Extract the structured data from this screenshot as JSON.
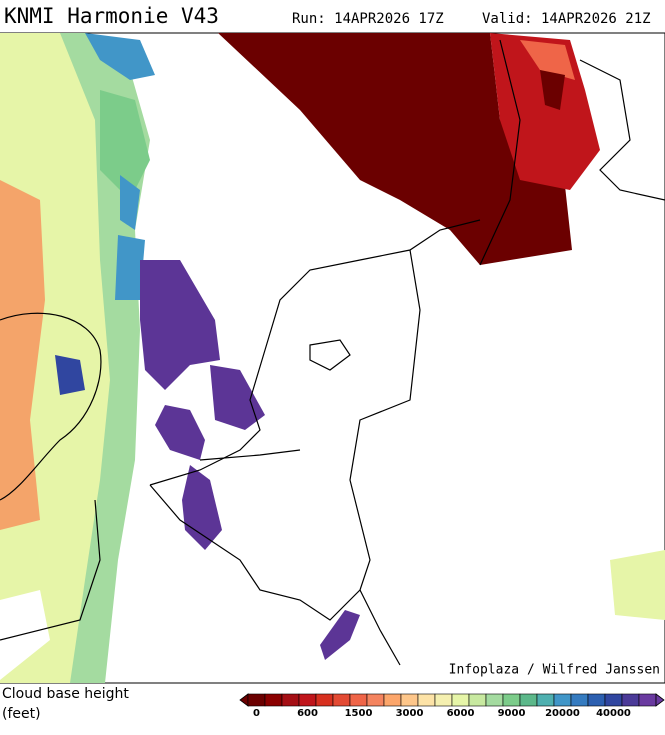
{
  "header": {
    "title": "KNMI Harmonie V43",
    "run": "Run: 14APR2026 17Z",
    "valid": "Valid: 14APR2026 21Z"
  },
  "credit": "Infoplaza / Wilfred Janssen",
  "legend": {
    "title": "Cloud base height",
    "unit": "(feet)",
    "labels": [
      0,
      600,
      1500,
      3000,
      6000,
      9000,
      20000,
      40000
    ],
    "colors": [
      "#6b0000",
      "#8b0000",
      "#a50f15",
      "#c0151b",
      "#d7301f",
      "#e34a33",
      "#ef6548",
      "#f4845f",
      "#fca66b",
      "#fdc68a",
      "#fde3a7",
      "#f5f0b0",
      "#e6f5a8",
      "#c8e9a0",
      "#a4dba0",
      "#7ccc8a",
      "#5cb88a",
      "#4fb0b0",
      "#4196c8",
      "#357bc0",
      "#2c5fb0",
      "#3046a0",
      "#4b3a98",
      "#6a3aa0"
    ]
  }
}
